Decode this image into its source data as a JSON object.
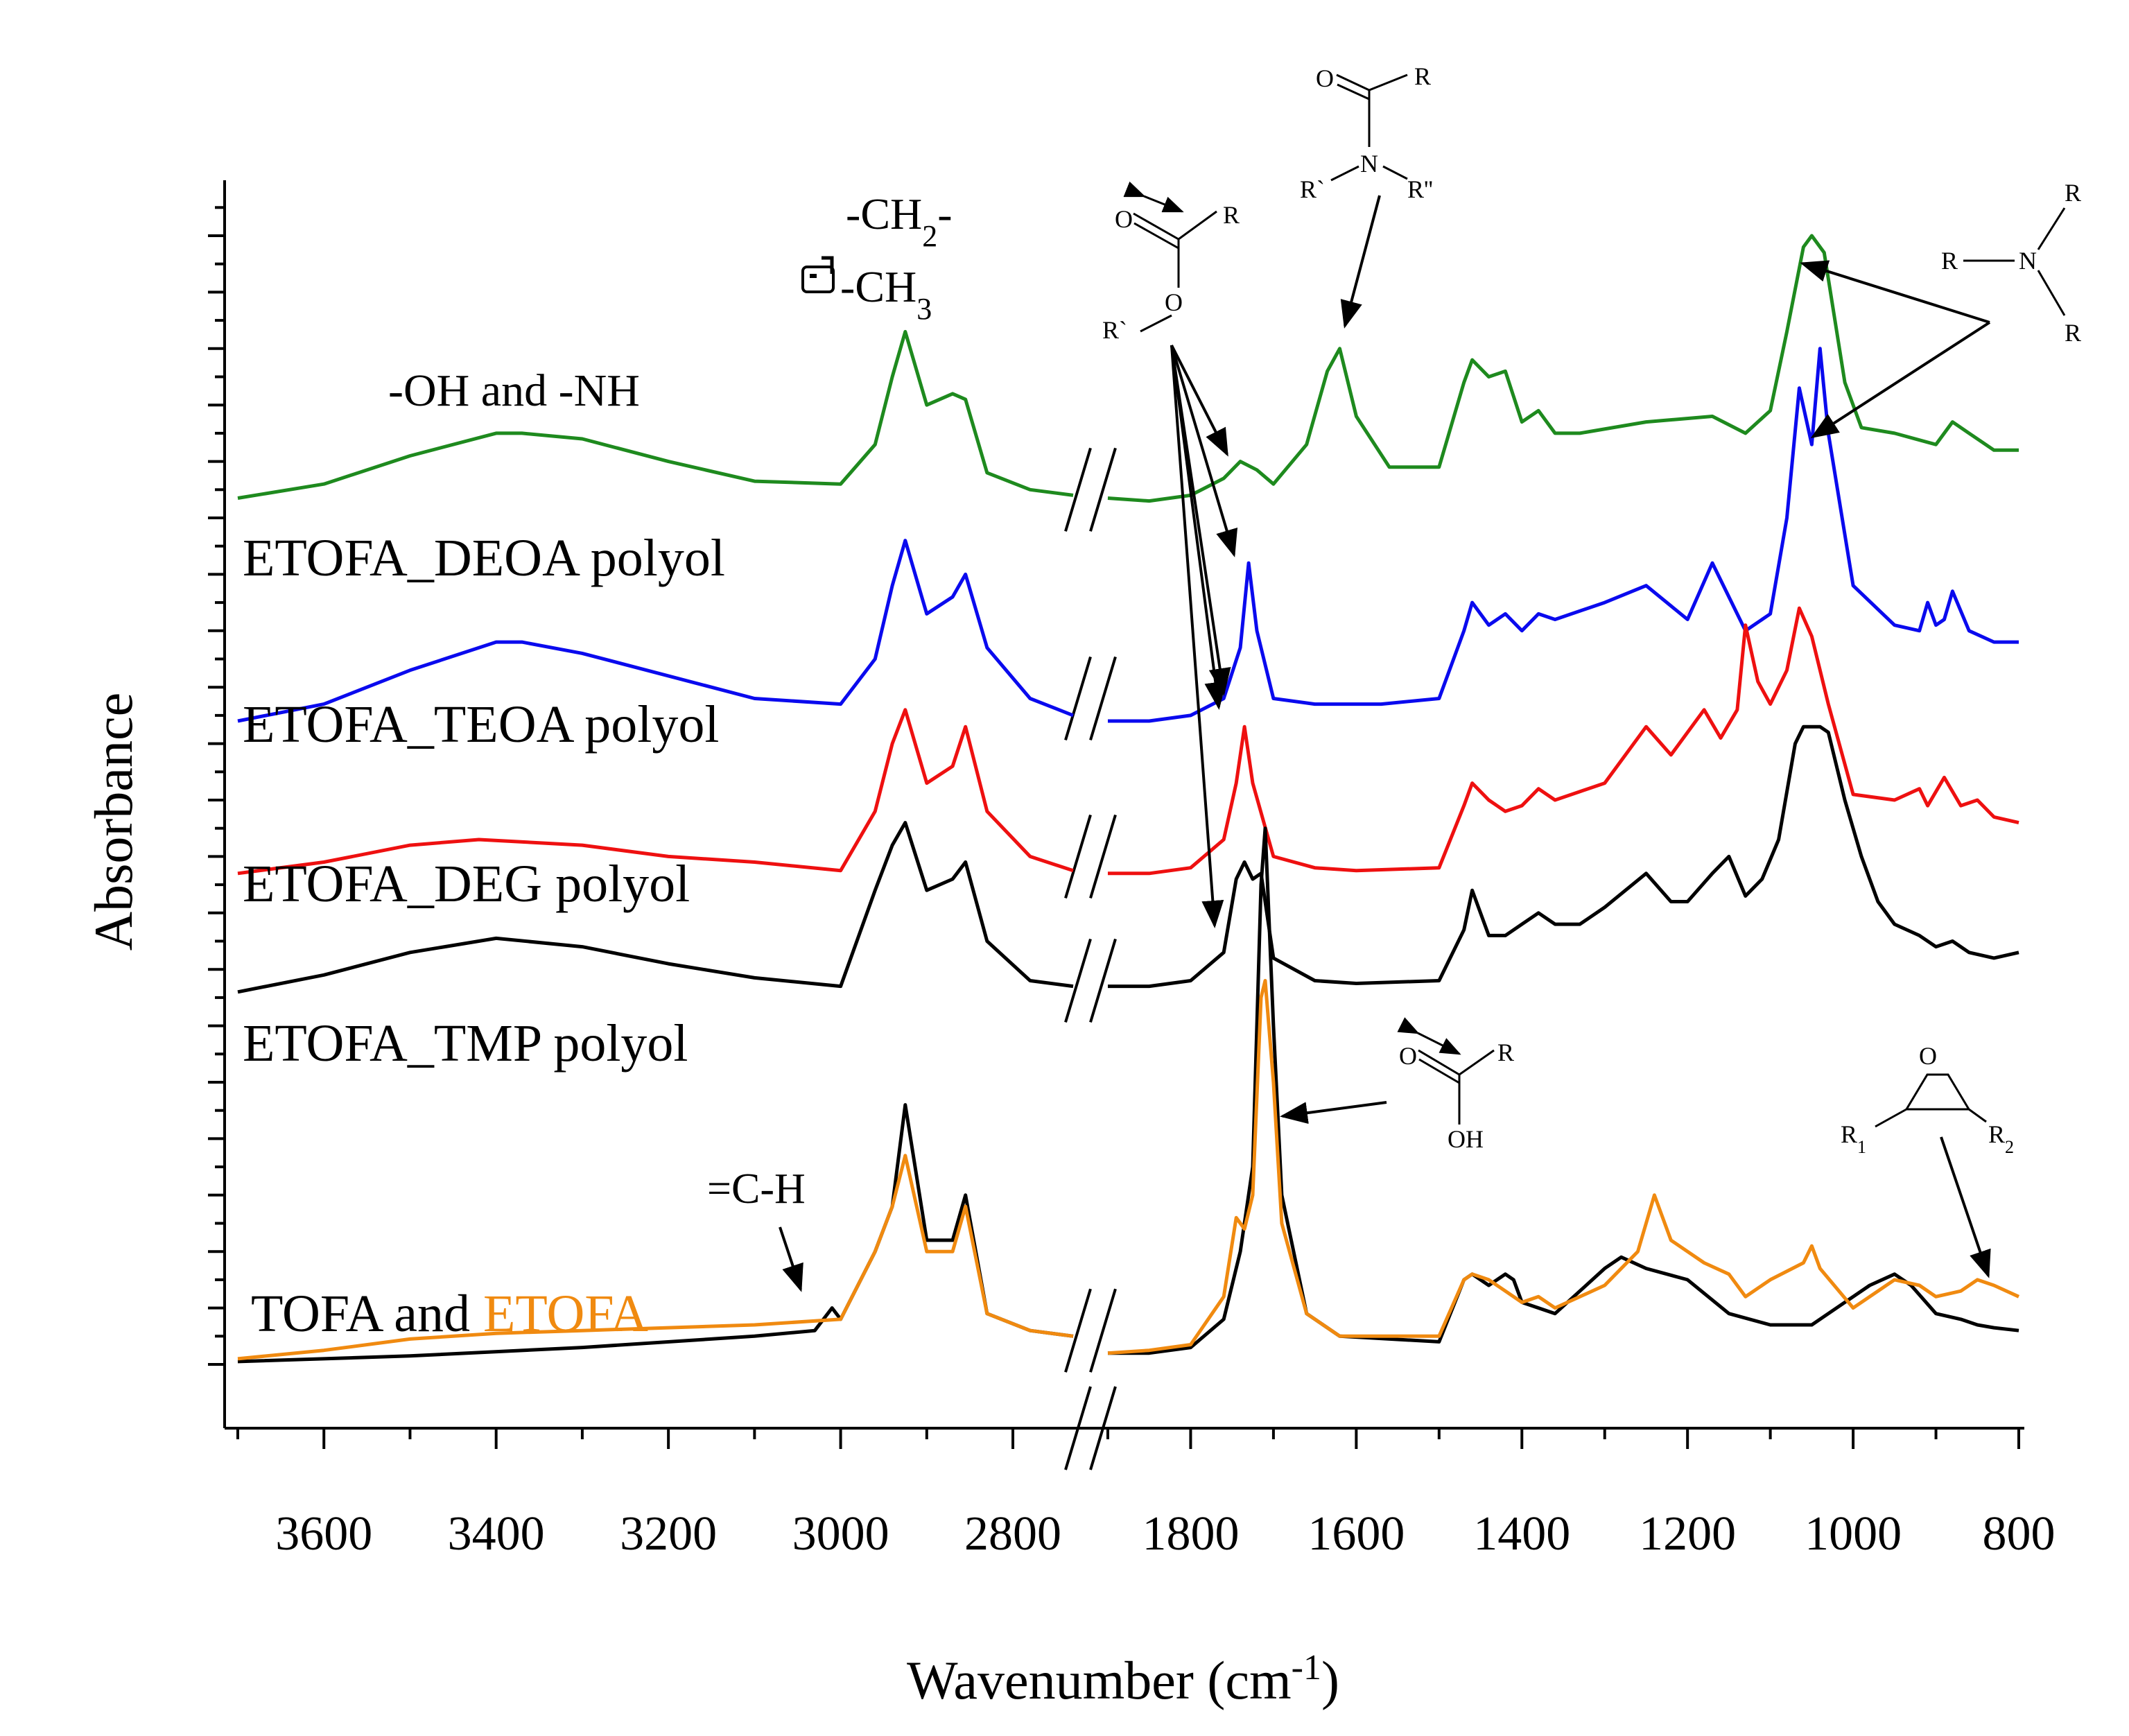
{
  "chart_data": {
    "type": "line",
    "title": "",
    "xlabel": "Wavenumber (cm",
    "xlabel_sup": "-1",
    "xlabel_close": ")",
    "ylabel": "Absorbance",
    "x_axis": {
      "reversed": true,
      "broken": true,
      "segments": [
        [
          3700,
          2730
        ],
        [
          1900,
          800
        ]
      ],
      "ticks": [
        3600,
        3400,
        3200,
        3000,
        2800,
        1800,
        1600,
        1400,
        1200,
        1000,
        800
      ],
      "tick_labels": [
        "3600",
        "3400",
        "3200",
        "3000",
        "2800",
        "1800",
        "1600",
        "1400",
        "1200",
        "1000",
        "800"
      ]
    },
    "ylim": [
      0,
      22
    ],
    "y_ticks_unlabeled": true,
    "colors": {
      "ETOFA_DEOA polyol": "#1e8a1e",
      "ETOFA_TEOA polyol": "#0a0aee",
      "ETOFA_DEG polyol": "#ee1010",
      "ETOFA_TMP polyol": "#000000",
      "TOFA": "#000000",
      "ETOFA": "#f08a10"
    },
    "series": [
      {
        "name": "ETOFA_DEOA polyol",
        "x": [
          3700,
          3600,
          3500,
          3400,
          3370,
          3300,
          3200,
          3100,
          3000,
          2960,
          2940,
          2925,
          2900,
          2870,
          2855,
          2830,
          2780,
          2730,
          1900,
          1850,
          1800,
          1760,
          1740,
          1720,
          1700,
          1660,
          1635,
          1620,
          1600,
          1560,
          1500,
          1470,
          1460,
          1440,
          1420,
          1400,
          1380,
          1360,
          1330,
          1250,
          1170,
          1130,
          1100,
          1080,
          1060,
          1050,
          1035,
          1010,
          990,
          950,
          900,
          880,
          860,
          830,
          800
        ],
        "y": [
          15.35,
          15.6,
          16.1,
          16.5,
          16.5,
          16.4,
          16.0,
          15.65,
          15.6,
          16.3,
          17.5,
          18.3,
          17.0,
          17.2,
          17.1,
          15.8,
          15.5,
          15.4,
          15.35,
          15.3,
          15.4,
          15.7,
          16.0,
          15.85,
          15.6,
          16.3,
          17.6,
          18.0,
          16.8,
          15.9,
          15.9,
          17.4,
          17.8,
          17.5,
          17.6,
          16.7,
          16.9,
          16.5,
          16.5,
          16.7,
          16.8,
          16.5,
          16.9,
          18.3,
          19.8,
          20.0,
          19.7,
          17.4,
          16.6,
          16.5,
          16.3,
          16.7,
          16.5,
          16.2,
          16.2
        ]
      },
      {
        "name": "ETOFA_TEOA polyol",
        "x": [
          3700,
          3600,
          3500,
          3400,
          3370,
          3300,
          3200,
          3100,
          3000,
          2960,
          2940,
          2925,
          2900,
          2870,
          2855,
          2830,
          2780,
          2730,
          1900,
          1850,
          1800,
          1760,
          1740,
          1730,
          1720,
          1700,
          1650,
          1600,
          1570,
          1500,
          1470,
          1460,
          1440,
          1420,
          1400,
          1380,
          1360,
          1300,
          1250,
          1200,
          1170,
          1130,
          1100,
          1080,
          1065,
          1050,
          1040,
          1030,
          1000,
          950,
          920,
          910,
          900,
          890,
          880,
          860,
          830,
          800
        ],
        "y": [
          11.4,
          11.7,
          12.3,
          12.8,
          12.8,
          12.6,
          12.2,
          11.8,
          11.7,
          12.5,
          13.8,
          14.6,
          13.3,
          13.6,
          14.0,
          12.7,
          11.8,
          11.5,
          11.4,
          11.4,
          11.5,
          11.8,
          12.7,
          14.2,
          13.0,
          11.8,
          11.7,
          11.7,
          11.7,
          11.8,
          13.0,
          13.5,
          13.1,
          13.3,
          13.0,
          13.3,
          13.2,
          13.5,
          13.8,
          13.2,
          14.2,
          13.0,
          13.3,
          15.0,
          17.3,
          16.3,
          18.0,
          16.5,
          13.8,
          13.1,
          13.0,
          13.5,
          13.1,
          13.2,
          13.7,
          13.0,
          12.8,
          12.8
        ]
      },
      {
        "name": "ETOFA_DEG polyol",
        "x": [
          3700,
          3600,
          3500,
          3420,
          3300,
          3200,
          3100,
          3000,
          2960,
          2940,
          2925,
          2900,
          2870,
          2855,
          2830,
          2780,
          2730,
          1900,
          1850,
          1800,
          1760,
          1745,
          1735,
          1725,
          1700,
          1650,
          1600,
          1500,
          1470,
          1460,
          1440,
          1420,
          1400,
          1380,
          1360,
          1300,
          1250,
          1220,
          1180,
          1160,
          1140,
          1130,
          1115,
          1100,
          1080,
          1065,
          1050,
          1030,
          1000,
          950,
          920,
          910,
          890,
          870,
          850,
          830,
          800
        ],
        "y": [
          8.7,
          8.9,
          9.2,
          9.3,
          9.2,
          9.0,
          8.9,
          8.75,
          9.8,
          11.0,
          11.6,
          10.3,
          10.6,
          11.3,
          9.8,
          9.0,
          8.75,
          8.7,
          8.7,
          8.8,
          9.3,
          10.3,
          11.3,
          10.3,
          9.0,
          8.8,
          8.75,
          8.8,
          9.9,
          10.3,
          10.0,
          9.8,
          9.9,
          10.2,
          10.0,
          10.3,
          11.3,
          10.8,
          11.6,
          11.1,
          11.6,
          13.1,
          12.1,
          11.7,
          12.3,
          13.4,
          12.9,
          11.7,
          10.1,
          10.0,
          10.2,
          9.9,
          10.4,
          9.9,
          10.0,
          9.7,
          9.6
        ]
      },
      {
        "name": "ETOFA_TMP polyol",
        "x": [
          3700,
          3600,
          3500,
          3400,
          3300,
          3200,
          3100,
          3000,
          2960,
          2940,
          2925,
          2900,
          2870,
          2855,
          2830,
          2780,
          2730,
          1900,
          1850,
          1800,
          1760,
          1745,
          1735,
          1725,
          1715,
          1700,
          1650,
          1600,
          1500,
          1470,
          1460,
          1440,
          1420,
          1400,
          1380,
          1360,
          1330,
          1300,
          1250,
          1220,
          1200,
          1170,
          1150,
          1130,
          1110,
          1090,
          1070,
          1060,
          1040,
          1030,
          1010,
          990,
          970,
          950,
          920,
          900,
          880,
          860,
          830,
          800
        ],
        "y": [
          6.6,
          6.9,
          7.3,
          7.55,
          7.4,
          7.1,
          6.85,
          6.7,
          8.4,
          9.2,
          9.6,
          8.4,
          8.6,
          8.9,
          7.5,
          6.8,
          6.7,
          6.7,
          6.7,
          6.8,
          7.3,
          8.6,
          8.9,
          8.6,
          8.7,
          7.2,
          6.8,
          6.75,
          6.8,
          7.7,
          8.4,
          7.6,
          7.6,
          7.8,
          8.0,
          7.8,
          7.8,
          8.1,
          8.7,
          8.2,
          8.2,
          8.7,
          9.0,
          8.3,
          8.6,
          9.3,
          11.0,
          11.3,
          11.3,
          11.2,
          10.0,
          9.0,
          8.2,
          7.8,
          7.6,
          7.4,
          7.5,
          7.3,
          7.2,
          7.3
        ]
      },
      {
        "name": "TOFA",
        "x": [
          3700,
          3500,
          3300,
          3100,
          3030,
          3010,
          3000,
          2960,
          2940,
          2925,
          2900,
          2870,
          2855,
          2830,
          2780,
          2730,
          1900,
          1850,
          1800,
          1760,
          1740,
          1725,
          1715,
          1710,
          1700,
          1690,
          1660,
          1620,
          1500,
          1470,
          1460,
          1440,
          1420,
          1410,
          1400,
          1380,
          1360,
          1330,
          1300,
          1280,
          1250,
          1200,
          1150,
          1100,
          1050,
          1000,
          980,
          950,
          930,
          900,
          870,
          850,
          830,
          800
        ],
        "y": [
          0.05,
          0.15,
          0.3,
          0.5,
          0.6,
          1.0,
          0.8,
          2.0,
          2.8,
          4.6,
          2.2,
          2.2,
          3.0,
          0.9,
          0.6,
          0.5,
          0.2,
          0.2,
          0.3,
          0.8,
          2.0,
          3.5,
          8.5,
          9.5,
          6.0,
          3.0,
          0.9,
          0.5,
          0.4,
          1.5,
          1.6,
          1.4,
          1.6,
          1.5,
          1.1,
          1.0,
          0.9,
          1.3,
          1.7,
          1.9,
          1.7,
          1.5,
          0.9,
          0.7,
          0.7,
          1.2,
          1.4,
          1.6,
          1.4,
          0.9,
          0.8,
          0.7,
          0.65,
          0.6
        ]
      },
      {
        "name": "ETOFA",
        "x": [
          3700,
          3600,
          3500,
          3400,
          3300,
          3100,
          3000,
          2960,
          2940,
          2925,
          2900,
          2870,
          2855,
          2830,
          2780,
          2730,
          1900,
          1850,
          1800,
          1760,
          1745,
          1735,
          1725,
          1715,
          1710,
          1700,
          1690,
          1660,
          1620,
          1500,
          1470,
          1460,
          1440,
          1420,
          1400,
          1380,
          1360,
          1300,
          1260,
          1240,
          1220,
          1180,
          1150,
          1130,
          1100,
          1060,
          1050,
          1040,
          1000,
          950,
          920,
          900,
          870,
          850,
          830,
          800
        ],
        "y": [
          0.1,
          0.25,
          0.45,
          0.55,
          0.6,
          0.7,
          0.8,
          2.0,
          2.8,
          3.7,
          2.0,
          2.0,
          2.8,
          0.9,
          0.6,
          0.5,
          0.2,
          0.25,
          0.35,
          1.2,
          2.6,
          2.4,
          3.0,
          6.5,
          6.8,
          5.0,
          2.5,
          0.9,
          0.5,
          0.5,
          1.5,
          1.6,
          1.5,
          1.3,
          1.1,
          1.2,
          1.0,
          1.4,
          2.0,
          3.0,
          2.2,
          1.8,
          1.6,
          1.2,
          1.5,
          1.8,
          2.1,
          1.7,
          1.0,
          1.5,
          1.4,
          1.2,
          1.3,
          1.5,
          1.4,
          1.2
        ]
      }
    ],
    "legend_labels": [
      {
        "series": "ETOFA_DEOA polyol",
        "text": "ETOFA_DEOA polyol"
      },
      {
        "series": "ETOFA_TEOA polyol",
        "text": "ETOFA_TEOA polyol"
      },
      {
        "series": "ETOFA_DEG polyol",
        "text": "ETOFA_DEG polyol"
      },
      {
        "series": "ETOFA_TMP polyol",
        "text": "ETOFA_TMP polyol"
      }
    ],
    "legend_bottom": {
      "part1": "TOFA and ",
      "part2": "ETOFA"
    },
    "annotations": {
      "oh_nh": "-OH and -NH",
      "ch2": "-CH",
      "ch2_sub": "2",
      "ch2_end": "-",
      "ch3": "-CH",
      "ch3_sub": "3",
      "ch_alkene": "=C-H",
      "ester_o": "O",
      "ester_r": "R",
      "ester_or": "R`",
      "ester_ring_o": "O",
      "amide_o": "O",
      "amide_r": "R",
      "amide_n": "N",
      "amide_r1": "R`",
      "amide_r2": "R''",
      "amine_r_top": "R",
      "amine_r_left": "R",
      "amine_n": "N",
      "amine_r_bottom": "R",
      "acid_o": "O",
      "acid_r": "R",
      "acid_oh": "OH",
      "epoxy_o": "O",
      "epoxy_r1": "R",
      "epoxy_r1_sub": "1",
      "epoxy_r2": "R",
      "epoxy_r2_sub": "2"
    }
  }
}
